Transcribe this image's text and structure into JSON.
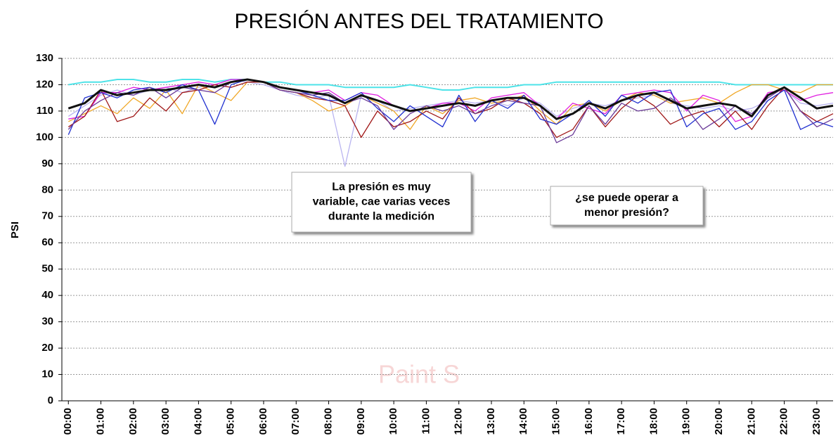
{
  "chart_data": {
    "type": "line",
    "title": "PRESIÓN ANTES DEL TRATAMIENTO",
    "y_label": "PSI",
    "watermark": "Paint S",
    "annotations": [
      [
        "La presión es muy",
        "variable, cae varias veces",
        "durante la medición"
      ],
      [
        "¿se puede operar a",
        "menor presión?"
      ]
    ],
    "xlim": [
      -0.2,
      23.5
    ],
    "ylim": [
      0,
      130
    ],
    "yticks": [
      0,
      10,
      20,
      30,
      40,
      50,
      60,
      70,
      80,
      90,
      100,
      110,
      120,
      130
    ],
    "xticks": [
      {
        "value": 0,
        "label": "00:00"
      },
      {
        "value": 1,
        "label": "01:00"
      },
      {
        "value": 2,
        "label": "02:00"
      },
      {
        "value": 3,
        "label": "03:00"
      },
      {
        "value": 4,
        "label": "04:00"
      },
      {
        "value": 5,
        "label": "05:00"
      },
      {
        "value": 6,
        "label": "06:00"
      },
      {
        "value": 7,
        "label": "07:00"
      },
      {
        "value": 8,
        "label": "08:00"
      },
      {
        "value": 9,
        "label": "09:00"
      },
      {
        "value": 10,
        "label": "10:00"
      },
      {
        "value": 11,
        "label": "11:00"
      },
      {
        "value": 12,
        "label": "12:00"
      },
      {
        "value": 13,
        "label": "13:00"
      },
      {
        "value": 14,
        "label": "14:00"
      },
      {
        "value": 15,
        "label": "15:00"
      },
      {
        "value": 16,
        "label": "16:00"
      },
      {
        "value": 17,
        "label": "17:00"
      },
      {
        "value": 18,
        "label": "18:00"
      },
      {
        "value": 19,
        "label": "19:00"
      },
      {
        "value": 20,
        "label": "20:00"
      },
      {
        "value": 21,
        "label": "21:00"
      },
      {
        "value": 22,
        "label": "22:00"
      },
      {
        "value": 23,
        "label": "23:00"
      }
    ],
    "grid": true,
    "x": [
      0,
      0.5,
      1,
      1.5,
      2,
      2.5,
      3,
      3.5,
      4,
      4.5,
      5,
      5.5,
      6,
      6.5,
      7,
      7.5,
      8,
      8.5,
      9,
      9.5,
      10,
      10.5,
      11,
      11.5,
      12,
      12.5,
      13,
      13.5,
      14,
      14.5,
      15,
      15.5,
      16,
      16.5,
      17,
      17.5,
      18,
      18.5,
      19,
      19.5,
      20,
      20.5,
      21,
      21.5,
      22,
      22.5,
      23,
      23.5
    ],
    "series": [
      {
        "color": "#4ee3e8",
        "width": 2,
        "values": [
          120,
          121,
          121,
          122,
          122,
          121,
          121,
          122,
          122,
          121,
          122,
          122,
          121,
          121,
          120,
          120,
          120,
          119,
          119,
          119,
          119,
          120,
          119,
          118,
          118,
          119,
          119,
          119,
          120,
          120,
          121,
          121,
          121,
          121,
          121,
          121,
          121,
          121,
          121,
          121,
          121,
          120,
          120,
          120,
          120,
          120,
          120,
          120
        ]
      },
      {
        "color": "#b9b4f0",
        "width": 1.3,
        "values": [
          108,
          112,
          116,
          118,
          116,
          118,
          119,
          117,
          119,
          120,
          122,
          121,
          120,
          118,
          116,
          115,
          116,
          89,
          116,
          114,
          110,
          111,
          112,
          113,
          114,
          113,
          114,
          112,
          115,
          113,
          108,
          111,
          113,
          112,
          114,
          115,
          116,
          113,
          112,
          111,
          112,
          110,
          111,
          114,
          118,
          113,
          112,
          113
        ]
      },
      {
        "color": "#f0a828",
        "width": 1.3,
        "values": [
          106,
          109,
          112,
          109,
          115,
          111,
          118,
          109,
          120,
          117,
          114,
          121,
          121,
          118,
          117,
          114,
          110,
          112,
          116,
          113,
          110,
          103,
          112,
          109,
          114,
          115,
          113,
          114,
          116,
          110,
          105,
          112,
          113,
          110,
          114,
          117,
          116,
          113,
          114,
          115,
          113,
          117,
          120,
          120,
          118,
          117,
          120,
          120
        ]
      },
      {
        "color": "#e020e0",
        "width": 1.3,
        "values": [
          107,
          108,
          117,
          117,
          119,
          118,
          119,
          120,
          121,
          120,
          122,
          122,
          121,
          119,
          118,
          117,
          118,
          114,
          117,
          116,
          112,
          110,
          111,
          113,
          113,
          110,
          115,
          116,
          117,
          112,
          107,
          113,
          111,
          109,
          116,
          117,
          118,
          117,
          110,
          116,
          114,
          106,
          108,
          117,
          118,
          114,
          116,
          117
        ]
      },
      {
        "color": "#a01818",
        "width": 1.3,
        "values": [
          104,
          108,
          118,
          106,
          108,
          115,
          110,
          117,
          118,
          120,
          119,
          121,
          121,
          118,
          117,
          115,
          114,
          112,
          100,
          110,
          104,
          106,
          110,
          107,
          115,
          109,
          111,
          115,
          113,
          109,
          100,
          103,
          112,
          104,
          111,
          116,
          112,
          105,
          108,
          110,
          104,
          110,
          103,
          112,
          119,
          110,
          106,
          109
        ]
      },
      {
        "color": "#2030d0",
        "width": 1.3,
        "values": [
          101,
          115,
          117,
          115,
          118,
          119,
          117,
          120,
          118,
          105,
          120,
          122,
          121,
          119,
          118,
          116,
          114,
          114,
          117,
          111,
          106,
          112,
          108,
          104,
          116,
          106,
          114,
          111,
          116,
          107,
          105,
          109,
          114,
          108,
          116,
          113,
          117,
          118,
          104,
          109,
          111,
          103,
          106,
          114,
          118,
          103,
          106,
          104
        ]
      },
      {
        "color": "#6a3a98",
        "width": 1.3,
        "values": [
          103,
          110,
          114,
          117,
          116,
          119,
          115,
          119,
          118,
          117,
          121,
          122,
          121,
          118,
          117,
          116,
          117,
          113,
          115,
          112,
          103,
          109,
          112,
          110,
          112,
          109,
          112,
          114,
          113,
          112,
          98,
          101,
          112,
          105,
          113,
          110,
          111,
          115,
          111,
          103,
          107,
          112,
          109,
          115,
          119,
          110,
          104,
          107
        ]
      },
      {
        "color": "#111111",
        "width": 3,
        "values": [
          111,
          113,
          118,
          116,
          117,
          118,
          118,
          119,
          120,
          119,
          121,
          122,
          121,
          119,
          118,
          117,
          116,
          113,
          116,
          114,
          112,
          110,
          111,
          112,
          113,
          112,
          114,
          115,
          115,
          112,
          107,
          109,
          113,
          111,
          114,
          116,
          117,
          114,
          111,
          112,
          113,
          112,
          108,
          116,
          119,
          115,
          111,
          112
        ]
      }
    ]
  }
}
